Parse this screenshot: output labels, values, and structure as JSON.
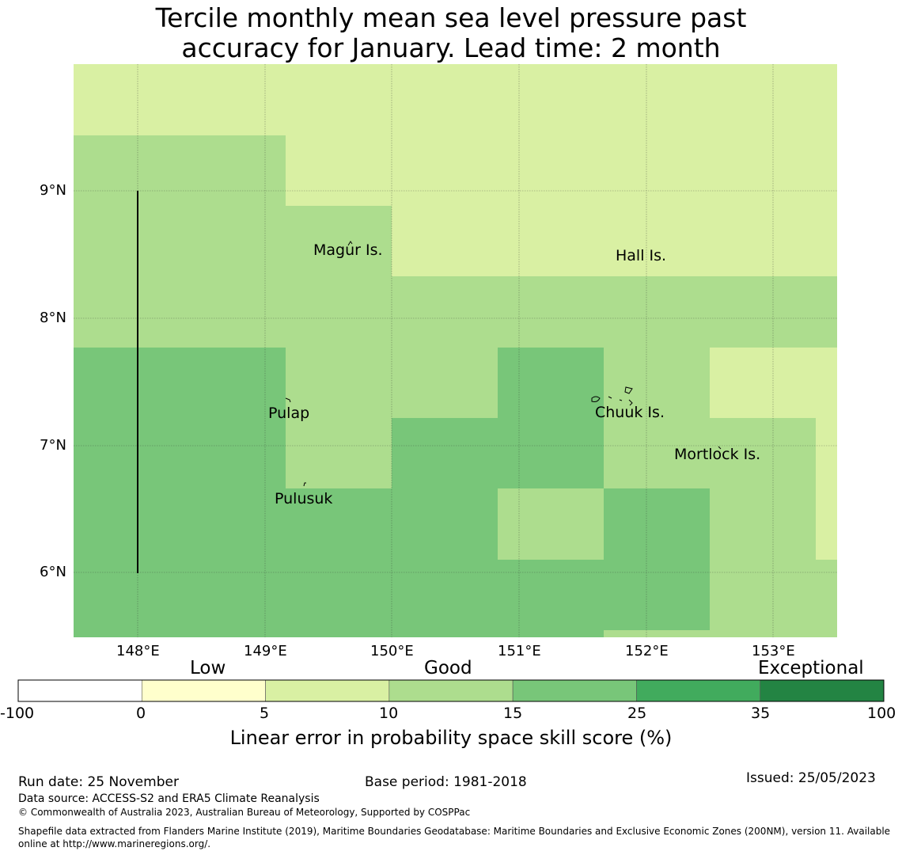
{
  "title_line1": "Tercile monthly mean sea level pressure past",
  "title_line2": "accuracy for January. Lead time: 2 month",
  "map": {
    "lon_range": [
      147.5,
      153.5
    ],
    "lat_range": [
      5.5,
      10.0
    ],
    "lon_ticks": [
      "148°E",
      "149°E",
      "150°E",
      "151°E",
      "152°E",
      "153°E"
    ],
    "lat_ticks": [
      "9°N",
      "8°N",
      "7°N",
      "6°N"
    ],
    "places": [
      {
        "name": "Magur Is.",
        "lon": 149.65,
        "lat": 8.6
      },
      {
        "name": "Hall Is.",
        "lon": 151.95,
        "lat": 8.55
      },
      {
        "name": "Pulap",
        "lon": 149.2,
        "lat": 7.35
      },
      {
        "name": "Chuuk Is.",
        "lon": 151.85,
        "lat": 7.4
      },
      {
        "name": "Mortlock Is.",
        "lon": 152.6,
        "lat": 7.0
      },
      {
        "name": "Pulusuk",
        "lon": 149.3,
        "lat": 6.65
      }
    ]
  },
  "colorbar": {
    "categories": [
      "Low",
      "Good",
      "Exceptional"
    ],
    "ticks": [
      "-100",
      "0",
      "5",
      "10",
      "15",
      "25",
      "35",
      "100"
    ],
    "colors": [
      "#ffffff",
      "#ffffcc",
      "#d9f0a3",
      "#addd8e",
      "#78c679",
      "#41ab5d",
      "#238443"
    ],
    "label": "Linear error in probability space skill score (%)"
  },
  "footer": {
    "run_date": "Run date: 25 November",
    "base_period": "Base period: 1981-2018",
    "issued": "Issued: 25/05/2023",
    "data_source": "Data source: ACCESS-S2 and ERA5 Climate Reanalysis",
    "copyright": "© Commonwealth of Australia 2023, Australian Bureau of Meteorology, Supported by COSPPac",
    "shapefile": "Shapefile data extracted from Flanders Marine Institute (2019), Maritime Boundaries Geodatabase: Maritime Boundaries and Exclusive Economic Zones (200NM), version 11. Available online at http://www.marineregions.org/."
  }
}
